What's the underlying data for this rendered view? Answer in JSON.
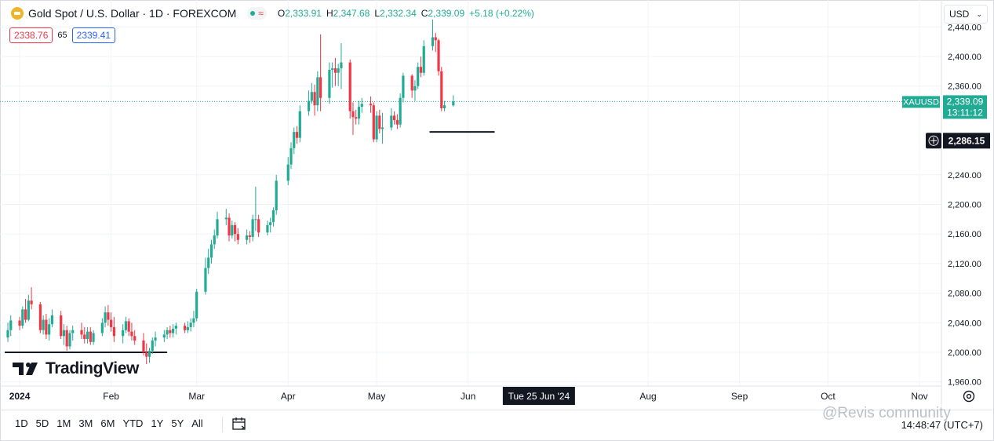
{
  "header": {
    "symbol_title": "Gold Spot / U.S. Dollar · 1D · FOREXCOM",
    "ohlc": {
      "open_label": "O",
      "open": "2,333.91",
      "high_label": "H",
      "high": "2,347.68",
      "low_label": "L",
      "low": "2,332.34",
      "close_label": "C",
      "close": "2,339.09",
      "change": "+5.18 (+0.22%)"
    },
    "bid": "2338.76",
    "spread": "65",
    "ask": "2339.41",
    "currency_selector": "USD"
  },
  "toolbar": {
    "timeframes": [
      "1D",
      "5D",
      "1M",
      "3M",
      "6M",
      "YTD",
      "1Y",
      "5Y",
      "All"
    ],
    "clock": "14:48:47 (UTC+7)"
  },
  "branding": {
    "logo_text": "TradingView",
    "watermark": "@Revis community"
  },
  "colors": {
    "up": "#22ab94",
    "down": "#f23645",
    "accent": "#2962ff",
    "gold": "#f0b429"
  },
  "chart_data": {
    "type": "candlestick",
    "ylim": [
      1950,
      2450
    ],
    "y_ticks": [
      1960,
      2000,
      2040,
      2080,
      2120,
      2160,
      2200,
      2240,
      2360,
      2400,
      2440
    ],
    "y_tick_labels": [
      "1,960.00",
      "2,000.00",
      "2,040.00",
      "2,080.00",
      "2,120.00",
      "2,160.00",
      "2,200.00",
      "2,240.00",
      "2,360.00",
      "2,400.00",
      "2,440.00"
    ],
    "x_ticks": [
      {
        "label": "2024",
        "date": "2024-01-01"
      },
      {
        "label": "Feb",
        "date": "2024-02-01"
      },
      {
        "label": "Mar",
        "date": "2024-03-01"
      },
      {
        "label": "Apr",
        "date": "2024-04-01"
      },
      {
        "label": "May",
        "date": "2024-05-01"
      },
      {
        "label": "Jun",
        "date": "2024-06-01"
      },
      {
        "label": "Aug",
        "date": "2024-08-01"
      },
      {
        "label": "Sep",
        "date": "2024-09-01"
      },
      {
        "label": "Oct",
        "date": "2024-10-01"
      },
      {
        "label": "Nov",
        "date": "2024-11-01"
      }
    ],
    "cursor_date_label": "Tue 25 Jun '24",
    "cursor_date": "2024-06-25",
    "last_price": {
      "symbol": "XAUUSD",
      "value": 2339.09,
      "label": "2,339.09",
      "countdown": "13:11:12"
    },
    "crosshair_price": {
      "value": 2286.15,
      "label": "2,286.15"
    },
    "horizontal_lines": [
      {
        "value": 2000,
        "start": "2023-12-28",
        "end": "2024-02-20"
      },
      {
        "value": 2298,
        "start": "2024-05-20",
        "end": "2024-06-10"
      }
    ],
    "candles": [
      {
        "date": "2023-12-28",
        "o": 2020,
        "h": 2040,
        "l": 2014,
        "c": 2030
      },
      {
        "date": "2023-12-29",
        "o": 2030,
        "h": 2050,
        "l": 2022,
        "c": 2043
      },
      {
        "date": "2024-01-01",
        "o": 2043,
        "h": 2048,
        "l": 2030,
        "c": 2036
      },
      {
        "date": "2024-01-02",
        "o": 2036,
        "h": 2062,
        "l": 2032,
        "c": 2058
      },
      {
        "date": "2024-01-03",
        "o": 2058,
        "h": 2072,
        "l": 2040,
        "c": 2044
      },
      {
        "date": "2024-01-04",
        "o": 2044,
        "h": 2078,
        "l": 2042,
        "c": 2070
      },
      {
        "date": "2024-01-05",
        "o": 2070,
        "h": 2088,
        "l": 2058,
        "c": 2065
      },
      {
        "date": "2024-01-08",
        "o": 2065,
        "h": 2068,
        "l": 2026,
        "c": 2030
      },
      {
        "date": "2024-01-09",
        "o": 2030,
        "h": 2050,
        "l": 2024,
        "c": 2044
      },
      {
        "date": "2024-01-10",
        "o": 2044,
        "h": 2052,
        "l": 2018,
        "c": 2024
      },
      {
        "date": "2024-01-11",
        "o": 2024,
        "h": 2046,
        "l": 2016,
        "c": 2038
      },
      {
        "date": "2024-01-12",
        "o": 2038,
        "h": 2058,
        "l": 2034,
        "c": 2050
      },
      {
        "date": "2024-01-15",
        "o": 2050,
        "h": 2056,
        "l": 2018,
        "c": 2022
      },
      {
        "date": "2024-01-16",
        "o": 2022,
        "h": 2038,
        "l": 2010,
        "c": 2030
      },
      {
        "date": "2024-01-17",
        "o": 2030,
        "h": 2036,
        "l": 2002,
        "c": 2008
      },
      {
        "date": "2024-01-18",
        "o": 2008,
        "h": 2030,
        "l": 2004,
        "c": 2026
      },
      {
        "date": "2024-01-19",
        "o": 2026,
        "h": 2036,
        "l": 2016,
        "c": 2030
      },
      {
        "date": "2024-01-22",
        "o": 2030,
        "h": 2040,
        "l": 2018,
        "c": 2024
      },
      {
        "date": "2024-01-23",
        "o": 2024,
        "h": 2034,
        "l": 2012,
        "c": 2018
      },
      {
        "date": "2024-01-24",
        "o": 2018,
        "h": 2034,
        "l": 2012,
        "c": 2028
      },
      {
        "date": "2024-01-25",
        "o": 2028,
        "h": 2034,
        "l": 2010,
        "c": 2014
      },
      {
        "date": "2024-01-26",
        "o": 2014,
        "h": 2030,
        "l": 2010,
        "c": 2026
      },
      {
        "date": "2024-01-29",
        "o": 2026,
        "h": 2046,
        "l": 2022,
        "c": 2040
      },
      {
        "date": "2024-01-30",
        "o": 2040,
        "h": 2062,
        "l": 2034,
        "c": 2054
      },
      {
        "date": "2024-01-31",
        "o": 2054,
        "h": 2064,
        "l": 2036,
        "c": 2044
      },
      {
        "date": "2024-02-01",
        "o": 2044,
        "h": 2054,
        "l": 2028,
        "c": 2034
      },
      {
        "date": "2024-02-02",
        "o": 2034,
        "h": 2048,
        "l": 2014,
        "c": 2022
      },
      {
        "date": "2024-02-05",
        "o": 2022,
        "h": 2038,
        "l": 2012,
        "c": 2030
      },
      {
        "date": "2024-02-06",
        "o": 2030,
        "h": 2048,
        "l": 2026,
        "c": 2042
      },
      {
        "date": "2024-02-07",
        "o": 2042,
        "h": 2046,
        "l": 2022,
        "c": 2028
      },
      {
        "date": "2024-02-08",
        "o": 2028,
        "h": 2040,
        "l": 2016,
        "c": 2022
      },
      {
        "date": "2024-02-09",
        "o": 2022,
        "h": 2030,
        "l": 2010,
        "c": 2016
      },
      {
        "date": "2024-02-12",
        "o": 2016,
        "h": 2026,
        "l": 1996,
        "c": 2000
      },
      {
        "date": "2024-02-13",
        "o": 2000,
        "h": 2012,
        "l": 1984,
        "c": 1994
      },
      {
        "date": "2024-02-14",
        "o": 1994,
        "h": 2006,
        "l": 1986,
        "c": 2002
      },
      {
        "date": "2024-02-15",
        "o": 2002,
        "h": 2020,
        "l": 1998,
        "c": 2016
      },
      {
        "date": "2024-02-16",
        "o": 2016,
        "h": 2028,
        "l": 2008,
        "c": 2020
      },
      {
        "date": "2024-02-19",
        "o": 2020,
        "h": 2030,
        "l": 2014,
        "c": 2024
      },
      {
        "date": "2024-02-20",
        "o": 2024,
        "h": 2034,
        "l": 2018,
        "c": 2030
      },
      {
        "date": "2024-02-21",
        "o": 2030,
        "h": 2036,
        "l": 2020,
        "c": 2026
      },
      {
        "date": "2024-02-22",
        "o": 2026,
        "h": 2038,
        "l": 2020,
        "c": 2032
      },
      {
        "date": "2024-02-23",
        "o": 2032,
        "h": 2040,
        "l": 2024,
        "c": 2036
      },
      {
        "date": "2024-02-26",
        "o": 2036,
        "h": 2040,
        "l": 2026,
        "c": 2030
      },
      {
        "date": "2024-02-27",
        "o": 2030,
        "h": 2042,
        "l": 2026,
        "c": 2034
      },
      {
        "date": "2024-02-28",
        "o": 2034,
        "h": 2046,
        "l": 2028,
        "c": 2040
      },
      {
        "date": "2024-02-29",
        "o": 2040,
        "h": 2056,
        "l": 2034,
        "c": 2046
      },
      {
        "date": "2024-03-01",
        "o": 2046,
        "h": 2086,
        "l": 2042,
        "c": 2082
      },
      {
        "date": "2024-03-04",
        "o": 2082,
        "h": 2128,
        "l": 2078,
        "c": 2114
      },
      {
        "date": "2024-03-05",
        "o": 2114,
        "h": 2140,
        "l": 2106,
        "c": 2128
      },
      {
        "date": "2024-03-06",
        "o": 2128,
        "h": 2152,
        "l": 2120,
        "c": 2146
      },
      {
        "date": "2024-03-07",
        "o": 2146,
        "h": 2166,
        "l": 2140,
        "c": 2158
      },
      {
        "date": "2024-03-08",
        "o": 2158,
        "h": 2190,
        "l": 2154,
        "c": 2180
      },
      {
        "date": "2024-03-11",
        "o": 2180,
        "h": 2194,
        "l": 2172,
        "c": 2182
      },
      {
        "date": "2024-03-12",
        "o": 2182,
        "h": 2188,
        "l": 2150,
        "c": 2158
      },
      {
        "date": "2024-03-13",
        "o": 2158,
        "h": 2178,
        "l": 2154,
        "c": 2172
      },
      {
        "date": "2024-03-14",
        "o": 2172,
        "h": 2176,
        "l": 2150,
        "c": 2160
      },
      {
        "date": "2024-03-15",
        "o": 2160,
        "h": 2168,
        "l": 2146,
        "c": 2152
      },
      {
        "date": "2024-03-18",
        "o": 2152,
        "h": 2166,
        "l": 2146,
        "c": 2158
      },
      {
        "date": "2024-03-19",
        "o": 2158,
        "h": 2164,
        "l": 2148,
        "c": 2156
      },
      {
        "date": "2024-03-20",
        "o": 2156,
        "h": 2186,
        "l": 2150,
        "c": 2180
      },
      {
        "date": "2024-03-21",
        "o": 2180,
        "h": 2224,
        "l": 2164,
        "c": 2180
      },
      {
        "date": "2024-03-22",
        "o": 2180,
        "h": 2186,
        "l": 2156,
        "c": 2162
      },
      {
        "date": "2024-03-25",
        "o": 2162,
        "h": 2178,
        "l": 2158,
        "c": 2172
      },
      {
        "date": "2024-03-26",
        "o": 2172,
        "h": 2182,
        "l": 2162,
        "c": 2176
      },
      {
        "date": "2024-03-27",
        "o": 2176,
        "h": 2196,
        "l": 2170,
        "c": 2192
      },
      {
        "date": "2024-03-28",
        "o": 2192,
        "h": 2240,
        "l": 2186,
        "c": 2232
      },
      {
        "date": "2024-04-01",
        "o": 2232,
        "h": 2264,
        "l": 2226,
        "c": 2254
      },
      {
        "date": "2024-04-02",
        "o": 2254,
        "h": 2284,
        "l": 2248,
        "c": 2276
      },
      {
        "date": "2024-04-03",
        "o": 2276,
        "h": 2304,
        "l": 2268,
        "c": 2298
      },
      {
        "date": "2024-04-04",
        "o": 2298,
        "h": 2306,
        "l": 2282,
        "c": 2290
      },
      {
        "date": "2024-04-05",
        "o": 2290,
        "h": 2334,
        "l": 2284,
        "c": 2326
      },
      {
        "date": "2024-04-08",
        "o": 2326,
        "h": 2354,
        "l": 2320,
        "c": 2340
      },
      {
        "date": "2024-04-09",
        "o": 2340,
        "h": 2364,
        "l": 2336,
        "c": 2352
      },
      {
        "date": "2024-04-10",
        "o": 2352,
        "h": 2362,
        "l": 2320,
        "c": 2334
      },
      {
        "date": "2024-04-11",
        "o": 2334,
        "h": 2380,
        "l": 2326,
        "c": 2372
      },
      {
        "date": "2024-04-12",
        "o": 2372,
        "h": 2430,
        "l": 2326,
        "c": 2344
      },
      {
        "date": "2024-04-15",
        "o": 2344,
        "h": 2392,
        "l": 2336,
        "c": 2382
      },
      {
        "date": "2024-04-16",
        "o": 2382,
        "h": 2392,
        "l": 2358,
        "c": 2384
      },
      {
        "date": "2024-04-17",
        "o": 2384,
        "h": 2398,
        "l": 2360,
        "c": 2378
      },
      {
        "date": "2024-04-18",
        "o": 2378,
        "h": 2390,
        "l": 2360,
        "c": 2384
      },
      {
        "date": "2024-04-19",
        "o": 2384,
        "h": 2418,
        "l": 2356,
        "c": 2392
      },
      {
        "date": "2024-04-22",
        "o": 2392,
        "h": 2396,
        "l": 2316,
        "c": 2326
      },
      {
        "date": "2024-04-23",
        "o": 2326,
        "h": 2338,
        "l": 2294,
        "c": 2318
      },
      {
        "date": "2024-04-24",
        "o": 2318,
        "h": 2328,
        "l": 2308,
        "c": 2316
      },
      {
        "date": "2024-04-25",
        "o": 2316,
        "h": 2340,
        "l": 2308,
        "c": 2332
      },
      {
        "date": "2024-04-26",
        "o": 2332,
        "h": 2344,
        "l": 2324,
        "c": 2336
      },
      {
        "date": "2024-04-29",
        "o": 2336,
        "h": 2346,
        "l": 2324,
        "c": 2334
      },
      {
        "date": "2024-04-30",
        "o": 2334,
        "h": 2338,
        "l": 2284,
        "c": 2288
      },
      {
        "date": "2024-05-01",
        "o": 2288,
        "h": 2326,
        "l": 2284,
        "c": 2320
      },
      {
        "date": "2024-05-02",
        "o": 2320,
        "h": 2328,
        "l": 2296,
        "c": 2302
      },
      {
        "date": "2024-05-03",
        "o": 2302,
        "h": 2324,
        "l": 2282,
        "c": 2304
      },
      {
        "date": "2024-05-06",
        "o": 2304,
        "h": 2330,
        "l": 2300,
        "c": 2320
      },
      {
        "date": "2024-05-07",
        "o": 2320,
        "h": 2326,
        "l": 2308,
        "c": 2314
      },
      {
        "date": "2024-05-08",
        "o": 2314,
        "h": 2322,
        "l": 2302,
        "c": 2308
      },
      {
        "date": "2024-05-09",
        "o": 2308,
        "h": 2350,
        "l": 2304,
        "c": 2344
      },
      {
        "date": "2024-05-10",
        "o": 2344,
        "h": 2378,
        "l": 2338,
        "c": 2374
      },
      {
        "date": "2024-05-13",
        "o": 2374,
        "h": 2376,
        "l": 2344,
        "c": 2354
      },
      {
        "date": "2024-05-14",
        "o": 2354,
        "h": 2368,
        "l": 2340,
        "c": 2360
      },
      {
        "date": "2024-05-15",
        "o": 2360,
        "h": 2392,
        "l": 2356,
        "c": 2386
      },
      {
        "date": "2024-05-16",
        "o": 2386,
        "h": 2400,
        "l": 2372,
        "c": 2378
      },
      {
        "date": "2024-05-17",
        "o": 2378,
        "h": 2422,
        "l": 2374,
        "c": 2414
      },
      {
        "date": "2024-05-20",
        "o": 2414,
        "h": 2450,
        "l": 2408,
        "c": 2426
      },
      {
        "date": "2024-05-21",
        "o": 2426,
        "h": 2432,
        "l": 2406,
        "c": 2422
      },
      {
        "date": "2024-05-22",
        "o": 2422,
        "h": 2424,
        "l": 2374,
        "c": 2380
      },
      {
        "date": "2024-05-23",
        "o": 2380,
        "h": 2386,
        "l": 2326,
        "c": 2330
      },
      {
        "date": "2024-05-24",
        "o": 2330,
        "h": 2340,
        "l": 2326,
        "c": 2334
      },
      {
        "date": "2024-05-27",
        "o": 2333.91,
        "h": 2347.68,
        "l": 2332.34,
        "c": 2339.09
      }
    ]
  }
}
